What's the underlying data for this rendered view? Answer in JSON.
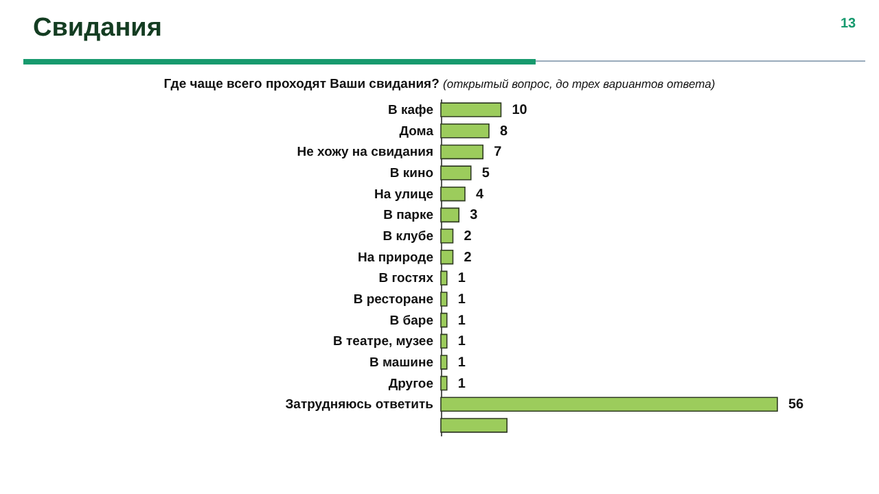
{
  "chart_data": {
    "type": "bar",
    "orientation": "horizontal",
    "title": "Свидания",
    "subtitle": "Где чаще всего проходят Ваши свидания?",
    "annotations": [
      "(открытый вопрос, до трех вариантов ответа)",
      "13"
    ],
    "categories": [
      "В кафе",
      "Дома",
      "Не хожу на свидания",
      "В кино",
      "На улице",
      "В парке",
      "В клубе",
      "На природе",
      "В гостях",
      "В ресторане",
      "В баре",
      "В театре, музее",
      "В машине",
      "Другое",
      "Затрудняюсь  ответить",
      null
    ],
    "values": [
      10,
      8,
      7,
      5,
      4,
      3,
      2,
      2,
      1,
      1,
      1,
      1,
      1,
      1,
      56,
      11
    ],
    "value_labels": [
      "10",
      "8",
      "7",
      "5",
      "4",
      "3",
      "2",
      "2",
      "1",
      "1",
      "1",
      "1",
      "1",
      "1",
      "56",
      null
    ],
    "color": "#9ccc5c"
  }
}
